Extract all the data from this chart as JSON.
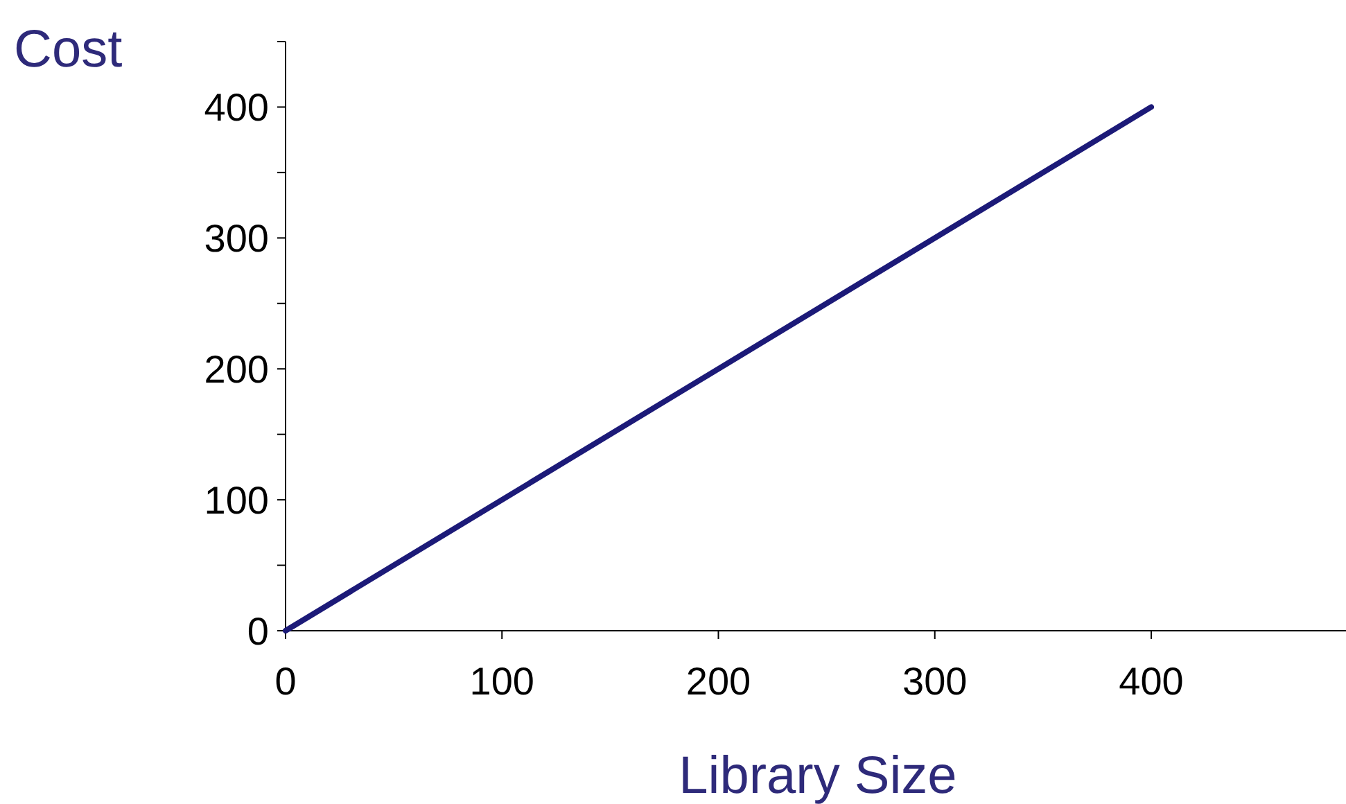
{
  "chart_data": {
    "type": "line",
    "xlabel": "Library Size",
    "ylabel": "Cost",
    "x": [
      0,
      400
    ],
    "series": [
      {
        "color": "#1c1a78",
        "values": [
          0,
          400
        ]
      }
    ],
    "xlim": [
      0,
      490
    ],
    "xticks": [
      0,
      100,
      200,
      300,
      400
    ],
    "ylim": [
      0,
      450
    ],
    "yticks": [
      0,
      {
        "value": 50,
        "label": null
      },
      100,
      {
        "value": 150,
        "label": null
      },
      200,
      {
        "value": 250,
        "label": null
      },
      300,
      {
        "value": 350,
        "label": null
      },
      400,
      {
        "value": 450,
        "label": null
      }
    ],
    "grid": false,
    "marker": "none",
    "line_style": "solid"
  }
}
